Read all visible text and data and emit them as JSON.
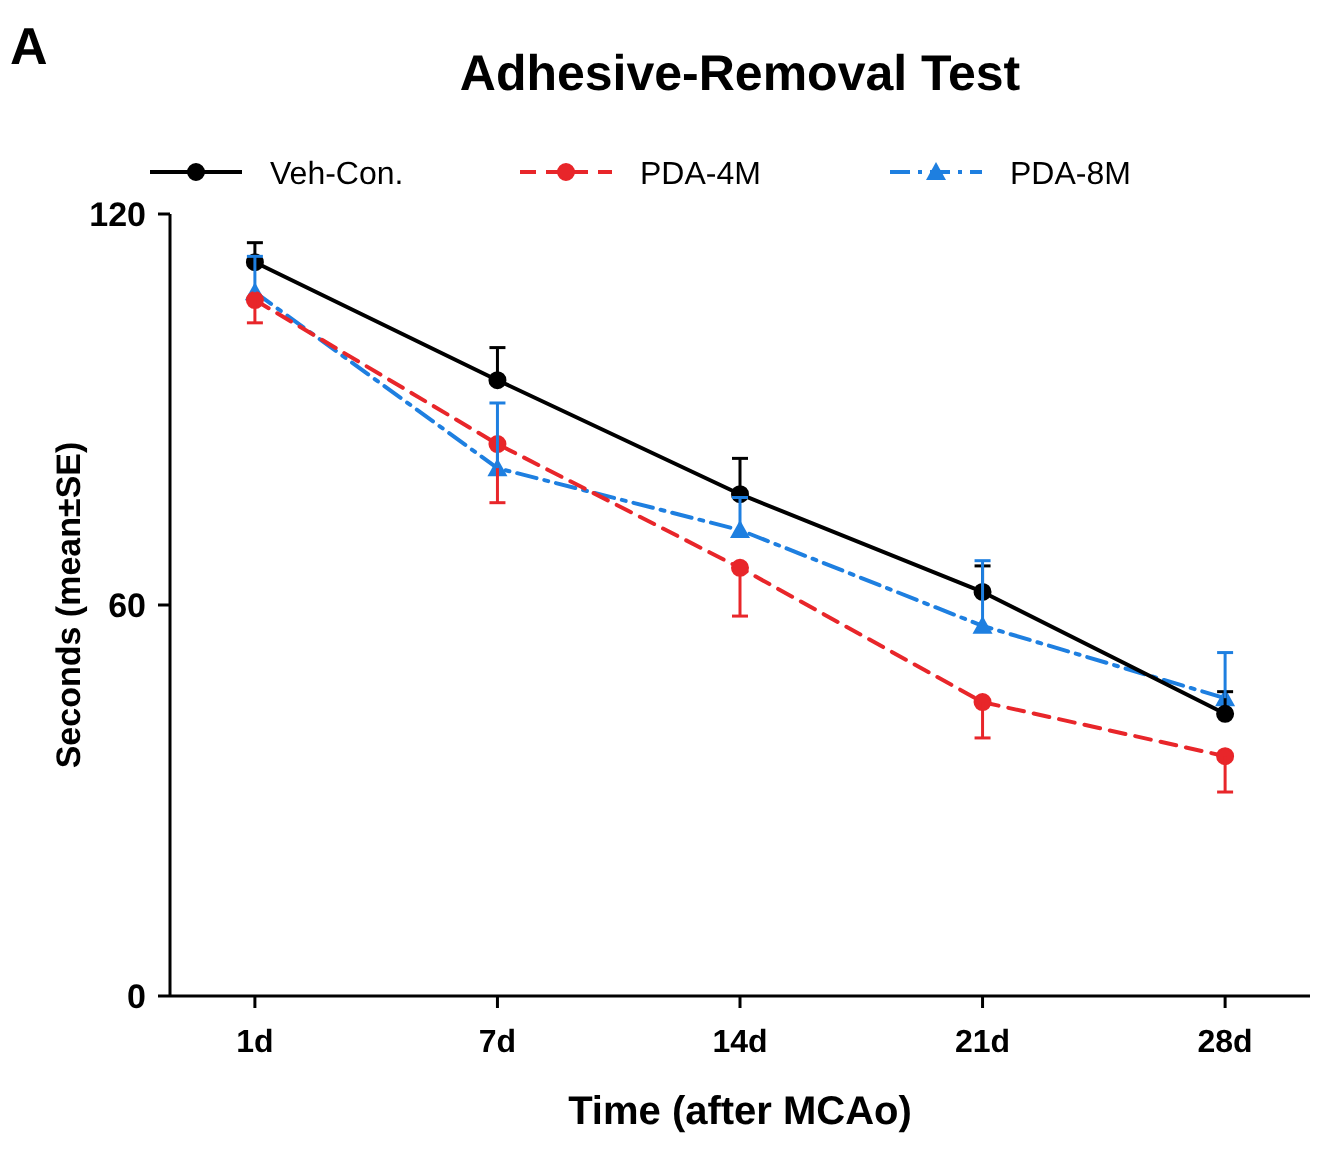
{
  "chart_data": {
    "type": "line",
    "title": "Adhesive-Removal Test",
    "xlabel": "Time (after MCAo)",
    "ylabel": "Seconds (mean±SE)",
    "annotations": [
      "A"
    ],
    "categories": [
      "1d",
      "7d",
      "14d",
      "21d",
      "28d"
    ],
    "ylim": [
      0,
      120
    ],
    "yticks": [
      0,
      60,
      120
    ],
    "grid": false,
    "legend": "top left",
    "series": [
      {
        "name": "Veh-Con.",
        "color": "#000000",
        "marker": "circle",
        "line_style": "solid",
        "values": [
          112.6,
          94.5,
          77,
          62,
          43.3
        ],
        "errors": [
          [
            112.6,
            115.6
          ],
          [
            94.5,
            99.5
          ],
          [
            77,
            82.5
          ],
          [
            62,
            66
          ],
          [
            43.3,
            46.7
          ]
        ]
      },
      {
        "name": "PDA-4M",
        "color": "#e8262a",
        "marker": "circle",
        "line_style": "dashed",
        "values": [
          106.8,
          84.7,
          65.7,
          45.1,
          36.8
        ],
        "errors": [
          [
            103.3,
            106.8
          ],
          [
            75.7,
            84.7
          ],
          [
            58.3,
            65.7
          ],
          [
            39.6,
            45.1
          ],
          [
            31.3,
            36.8
          ]
        ]
      },
      {
        "name": "PDA-8M",
        "color": "#1e7fe0",
        "marker": "triangle",
        "line_style": "dashdot",
        "values": [
          108,
          81,
          71.5,
          56.8,
          45.7
        ],
        "errors": [
          [
            108,
            113.5
          ],
          [
            81,
            91
          ],
          [
            71.5,
            76.5
          ],
          [
            56.8,
            66.8
          ],
          [
            45.7,
            52.7
          ]
        ]
      }
    ]
  }
}
